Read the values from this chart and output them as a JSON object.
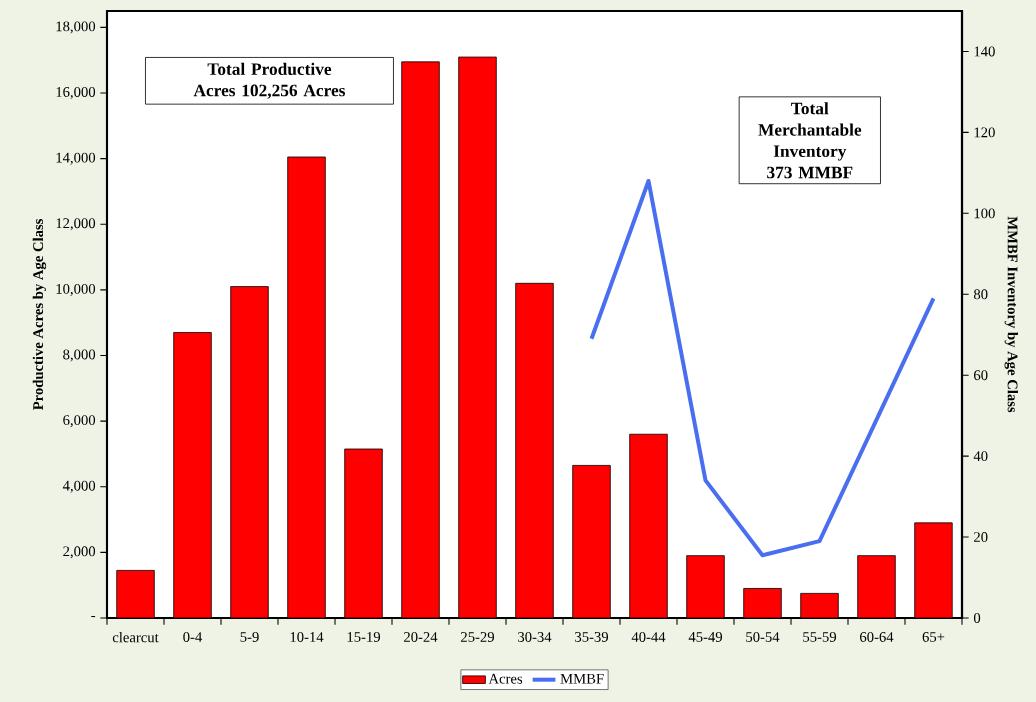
{
  "chart_data": {
    "type": "bar",
    "categories": [
      "clearcut",
      "0-4",
      "5-9",
      "10-14",
      "15-19",
      "20-24",
      "25-29",
      "30-34",
      "35-39",
      "40-44",
      "45-49",
      "50-54",
      "55-59",
      "60-64",
      "65+"
    ],
    "series": [
      {
        "name": "Acres",
        "color": "#ff0000",
        "values": [
          1450,
          8700,
          10100,
          14050,
          5150,
          16950,
          17100,
          10200,
          4650,
          5600,
          1900,
          900,
          750,
          1900,
          2900
        ]
      },
      {
        "name": "MMBF",
        "type": "line",
        "axis": "y2",
        "color": "#4a6ef0",
        "values": [
          null,
          null,
          null,
          null,
          null,
          null,
          null,
          null,
          69,
          108,
          34,
          15.5,
          19,
          49,
          79
        ]
      }
    ],
    "ylabel": "Productive Acres by Age Class",
    "y2label": "MMBF Inventory by Age Class",
    "ylim": [
      0,
      18500
    ],
    "yticks": [
      {
        "value": 0,
        "label": "-"
      },
      {
        "value": 2000,
        "label": "2,000"
      },
      {
        "value": 4000,
        "label": "4,000"
      },
      {
        "value": 6000,
        "label": "6,000"
      },
      {
        "value": 8000,
        "label": "8,000"
      },
      {
        "value": 10000,
        "label": "10,000"
      },
      {
        "value": 12000,
        "label": "12,000"
      },
      {
        "value": 14000,
        "label": "14,000"
      },
      {
        "value": 16000,
        "label": "16,000"
      },
      {
        "value": 18000,
        "label": "18,000"
      }
    ],
    "y2lim": [
      0,
      150
    ],
    "y2ticks": [
      0,
      20,
      40,
      60,
      80,
      100,
      120,
      140
    ],
    "annotations": [
      "Total Productive Acres 102,256 Acres",
      "Total Merchantable Inventory 373 MMBF"
    ],
    "legend": "bottom"
  }
}
